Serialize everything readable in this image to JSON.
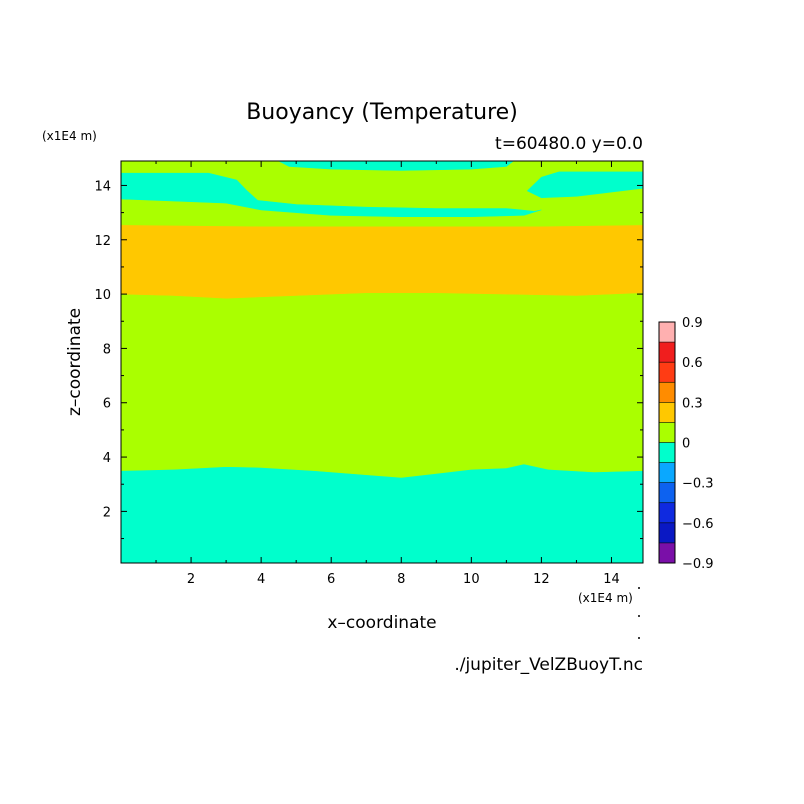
{
  "chart_data": {
    "type": "heatmap",
    "title": "Buoyancy (Temperature)",
    "subtitle": "t=60480.0 y=0.0",
    "xlabel": "x–coordinate",
    "ylabel": "z–coordinate",
    "x_unit": "(x1E4 m)",
    "y_unit": "(x1E4 m)",
    "xlim": [
      0.0,
      14.9
    ],
    "ylim": [
      0.1,
      14.9
    ],
    "x_ticks": [
      2,
      4,
      6,
      8,
      10,
      12,
      14
    ],
    "y_ticks": [
      2,
      4,
      6,
      8,
      10,
      12,
      14
    ],
    "footer": "./jupiter_VelZBuoyT.nc",
    "colorbar": {
      "levels": [
        -0.9,
        -0.75,
        -0.6,
        -0.45,
        -0.3,
        -0.15,
        0.0,
        0.15,
        0.3,
        0.45,
        0.6,
        0.75,
        0.9
      ],
      "colors": [
        "#7a0fa8",
        "#0a18c4",
        "#0f2ae0",
        "#0d62f0",
        "#0aa8ff",
        "#00ffcc",
        "#aaff00",
        "#ffc800",
        "#ff8c00",
        "#ff3c14",
        "#f01e1e",
        "#ffb0b0"
      ],
      "tick_labels": [
        "0.9",
        "0.6",
        "0.3",
        "0",
        "−0.3",
        "−0.6",
        "−0.9"
      ],
      "tick_values": [
        0.9,
        0.6,
        0.3,
        0.0,
        -0.3,
        -0.6,
        -0.9
      ]
    },
    "bands": [
      {
        "value_range": [
          -0.15,
          0.0
        ],
        "color": "#00ffcc",
        "z_bottom": 0.1,
        "z_top": [
          [
            0.0,
            3.5
          ],
          [
            1.5,
            3.55
          ],
          [
            3.0,
            3.65
          ],
          [
            4.0,
            3.62
          ],
          [
            5.5,
            3.5
          ],
          [
            7.0,
            3.35
          ],
          [
            8.0,
            3.25
          ],
          [
            9.0,
            3.4
          ],
          [
            10.0,
            3.55
          ],
          [
            11.0,
            3.6
          ],
          [
            11.5,
            3.75
          ],
          [
            12.2,
            3.55
          ],
          [
            13.5,
            3.45
          ],
          [
            14.9,
            3.5
          ]
        ]
      },
      {
        "value_range": [
          0.0,
          0.15
        ],
        "color": "#aaff00",
        "z_bottom_ref": "below",
        "z_top": [
          [
            0.0,
            10.0
          ],
          [
            1.5,
            9.95
          ],
          [
            3.0,
            9.85
          ],
          [
            5.0,
            9.95
          ],
          [
            7.0,
            10.05
          ],
          [
            9.0,
            10.05
          ],
          [
            11.0,
            10.0
          ],
          [
            13.0,
            9.95
          ],
          [
            14.9,
            10.05
          ]
        ]
      },
      {
        "value_range": [
          0.15,
          0.3
        ],
        "color": "#ffc800",
        "z_bottom_ref": "below",
        "z_top": [
          [
            0.0,
            12.55
          ],
          [
            4.0,
            12.5
          ],
          [
            8.0,
            12.5
          ],
          [
            12.0,
            12.5
          ],
          [
            14.9,
            12.55
          ]
        ]
      },
      {
        "value_range": [
          0.0,
          0.15
        ],
        "color": "#aaff00",
        "z_bottom_ref": "below",
        "z_top": [
          [
            0.0,
            14.9
          ],
          [
            14.9,
            14.9
          ]
        ]
      }
    ],
    "patches": [
      {
        "value_range": [
          -0.15,
          0.0
        ],
        "color": "#00ffcc",
        "outline": [
          [
            0.0,
            14.45
          ],
          [
            2.5,
            14.45
          ],
          [
            3.3,
            14.2
          ],
          [
            3.6,
            13.8
          ],
          [
            3.9,
            13.45
          ],
          [
            5.0,
            13.3
          ],
          [
            7.0,
            13.2
          ],
          [
            9.0,
            13.15
          ],
          [
            11.0,
            13.15
          ],
          [
            11.8,
            13.05
          ],
          [
            12.0,
            13.1
          ],
          [
            11.5,
            12.9
          ],
          [
            10.0,
            12.85
          ],
          [
            8.0,
            12.85
          ],
          [
            6.0,
            12.9
          ],
          [
            4.0,
            13.1
          ],
          [
            3.0,
            13.35
          ],
          [
            2.0,
            13.4
          ],
          [
            0.0,
            13.5
          ]
        ]
      },
      {
        "value_range": [
          -0.15,
          0.0
        ],
        "color": "#00ffcc",
        "outline": [
          [
            11.6,
            13.8
          ],
          [
            12.0,
            14.3
          ],
          [
            12.5,
            14.5
          ],
          [
            14.9,
            14.5
          ],
          [
            14.9,
            13.9
          ],
          [
            13.0,
            13.6
          ],
          [
            12.0,
            13.55
          ]
        ]
      },
      {
        "value_range": [
          -0.15,
          0.0
        ],
        "color": "#00ffcc",
        "outline": [
          [
            4.5,
            14.9
          ],
          [
            4.8,
            14.7
          ],
          [
            6.0,
            14.6
          ],
          [
            8.0,
            14.55
          ],
          [
            10.0,
            14.6
          ],
          [
            11.0,
            14.7
          ],
          [
            11.2,
            14.9
          ]
        ]
      }
    ]
  }
}
